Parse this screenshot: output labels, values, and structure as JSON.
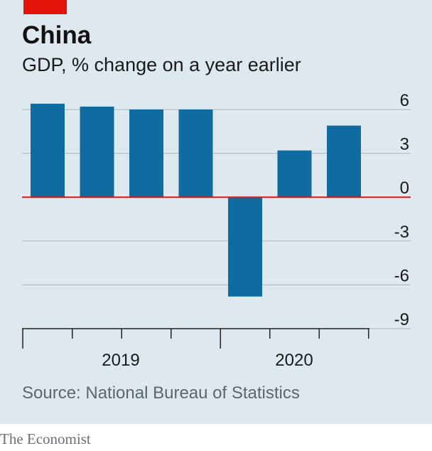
{
  "header": {
    "title": "China",
    "subtitle": "GDP, % change on a year earlier"
  },
  "footer": {
    "source": "Source: National Bureau of Statistics",
    "brand": "The Economist"
  },
  "colors": {
    "bar": "#0f6ba0",
    "zero_line": "#e3120b",
    "grid": "#a9b5bd",
    "background": "#dde8ef",
    "tag": "#e3120b"
  },
  "chart_data": {
    "type": "bar",
    "title": "China",
    "subtitle": "GDP, % change on a year earlier",
    "categories": [
      "2019 Q1",
      "2019 Q2",
      "2019 Q3",
      "2019 Q4",
      "2020 Q1",
      "2020 Q2",
      "2020 Q3"
    ],
    "values": [
      6.4,
      6.2,
      6.0,
      6.0,
      -6.8,
      3.2,
      4.9
    ],
    "year_labels": [
      {
        "label": "2019",
        "quarters": [
          0,
          3
        ]
      },
      {
        "label": "2020",
        "quarters": [
          4,
          7
        ]
      }
    ],
    "xlabel": "",
    "ylabel": "",
    "ylim": [
      -9,
      6
    ],
    "yticks": [
      6,
      3,
      0,
      -3,
      -6,
      -9
    ],
    "ytick_labels": [
      "6",
      "3",
      "0",
      "-3",
      "-6",
      "-9"
    ],
    "y_axis_side": "right",
    "grid": true,
    "legend": "none"
  }
}
